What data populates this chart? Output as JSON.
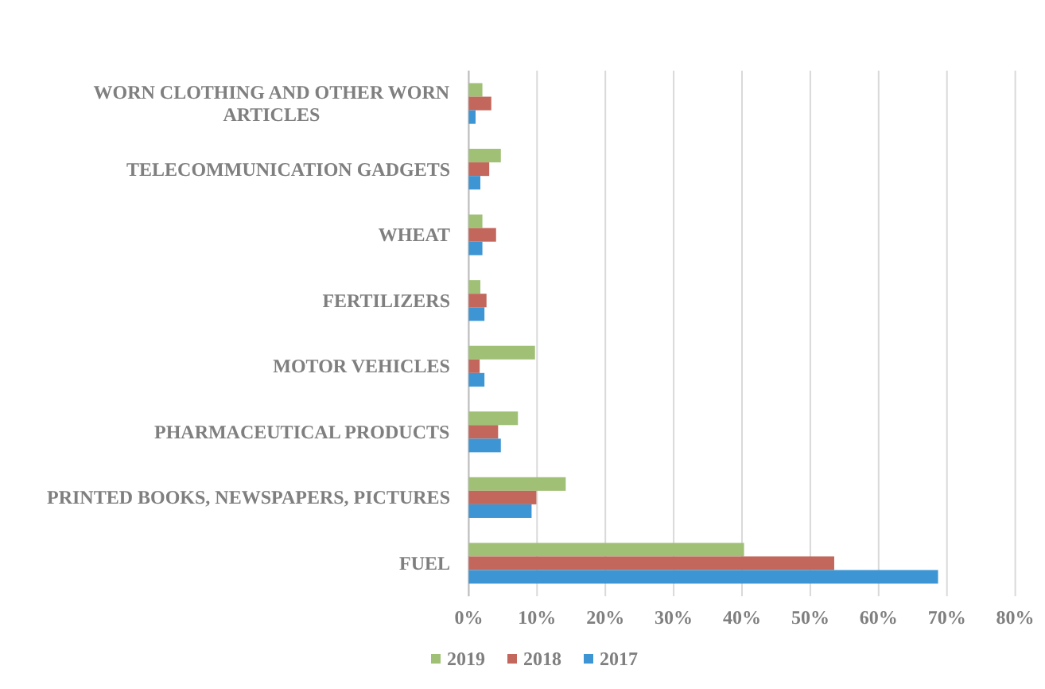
{
  "chart_data": {
    "type": "bar",
    "orientation": "horizontal",
    "categories": [
      "WORN CLOTHING AND OTHER WORN ARTICLES",
      "TELECOMMUNICATION GADGETS",
      "WHEAT",
      "FERTILIZERS",
      "MOTOR VEHICLES",
      "PHARMACEUTICAL PRODUCTS",
      "PRINTED BOOKS, NEWSPAPERS, PICTURES",
      "FUEL"
    ],
    "series": [
      {
        "name": "2019",
        "color": "#a0c076",
        "values": [
          2.0,
          4.7,
          2.0,
          1.7,
          9.7,
          7.2,
          14.2,
          40.3
        ]
      },
      {
        "name": "2018",
        "color": "#c3665b",
        "values": [
          3.3,
          3.0,
          4.0,
          2.6,
          1.6,
          4.3,
          9.9,
          53.5
        ]
      },
      {
        "name": "2017",
        "color": "#3d96d3",
        "values": [
          1.0,
          1.7,
          2.0,
          2.3,
          2.3,
          4.7,
          9.2,
          68.7
        ]
      }
    ],
    "xlim": [
      0,
      80
    ],
    "xticks": [
      {
        "value": 0,
        "label": "0%"
      },
      {
        "value": 10,
        "label": "10%"
      },
      {
        "value": 20,
        "label": "20%"
      },
      {
        "value": 30,
        "label": "30%"
      },
      {
        "value": 40,
        "label": "40%"
      },
      {
        "value": 50,
        "label": "50%"
      },
      {
        "value": 60,
        "label": "60%"
      },
      {
        "value": 70,
        "label": "70%"
      },
      {
        "value": 80,
        "label": "80%"
      }
    ],
    "grid": "x",
    "legend": "bottom"
  }
}
